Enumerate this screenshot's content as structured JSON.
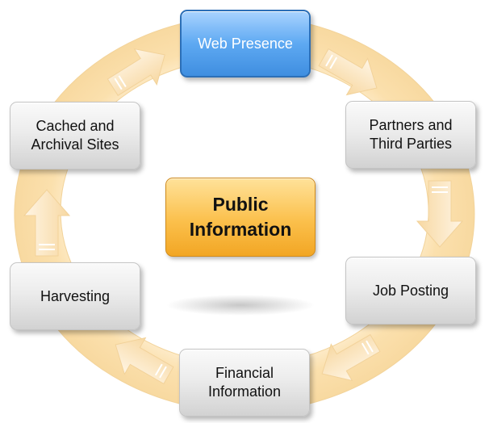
{
  "center": {
    "label": "Public\nInformation"
  },
  "cycle": {
    "nodes": [
      {
        "label": "Web Presence",
        "style": "blue"
      },
      {
        "label": "Partners and\nThird Parties",
        "style": "gray"
      },
      {
        "label": "Job Posting",
        "style": "gray"
      },
      {
        "label": "Financial\nInformation",
        "style": "gray"
      },
      {
        "label": "Harvesting",
        "style": "gray"
      },
      {
        "label": "Cached and\nArchival Sites",
        "style": "gray"
      }
    ]
  },
  "colors": {
    "ring": "#fbe3b6",
    "arrow": "#fbe6c2",
    "node_gray": "#e4e4e4",
    "node_blue": "#5ea9f2",
    "center": "#fbc04c"
  }
}
